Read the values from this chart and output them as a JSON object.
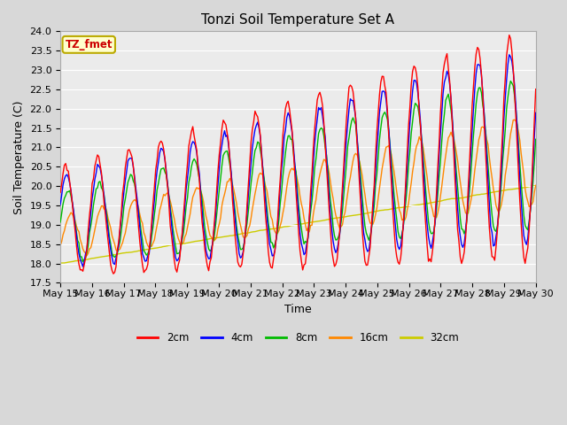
{
  "title": "Tonzi Soil Temperature Set A",
  "xlabel": "Time",
  "ylabel": "Soil Temperature (C)",
  "ylim": [
    17.5,
    24.0
  ],
  "yticks": [
    17.5,
    18.0,
    18.5,
    19.0,
    19.5,
    20.0,
    20.5,
    21.0,
    21.5,
    22.0,
    22.5,
    23.0,
    23.5,
    24.0
  ],
  "colors": {
    "2cm": "#ff0000",
    "4cm": "#0000ff",
    "8cm": "#00bb00",
    "16cm": "#ff8800",
    "32cm": "#cccc00"
  },
  "annotation_text": "TZ_fmet",
  "annotation_color": "#cc0000",
  "annotation_bg": "#ffffcc",
  "annotation_border": "#bbaa00",
  "fig_facecolor": "#d8d8d8",
  "plot_facecolor": "#ebebeb",
  "grid_color": "#ffffff",
  "title_fontsize": 11,
  "axis_fontsize": 9,
  "tick_fontsize": 8
}
